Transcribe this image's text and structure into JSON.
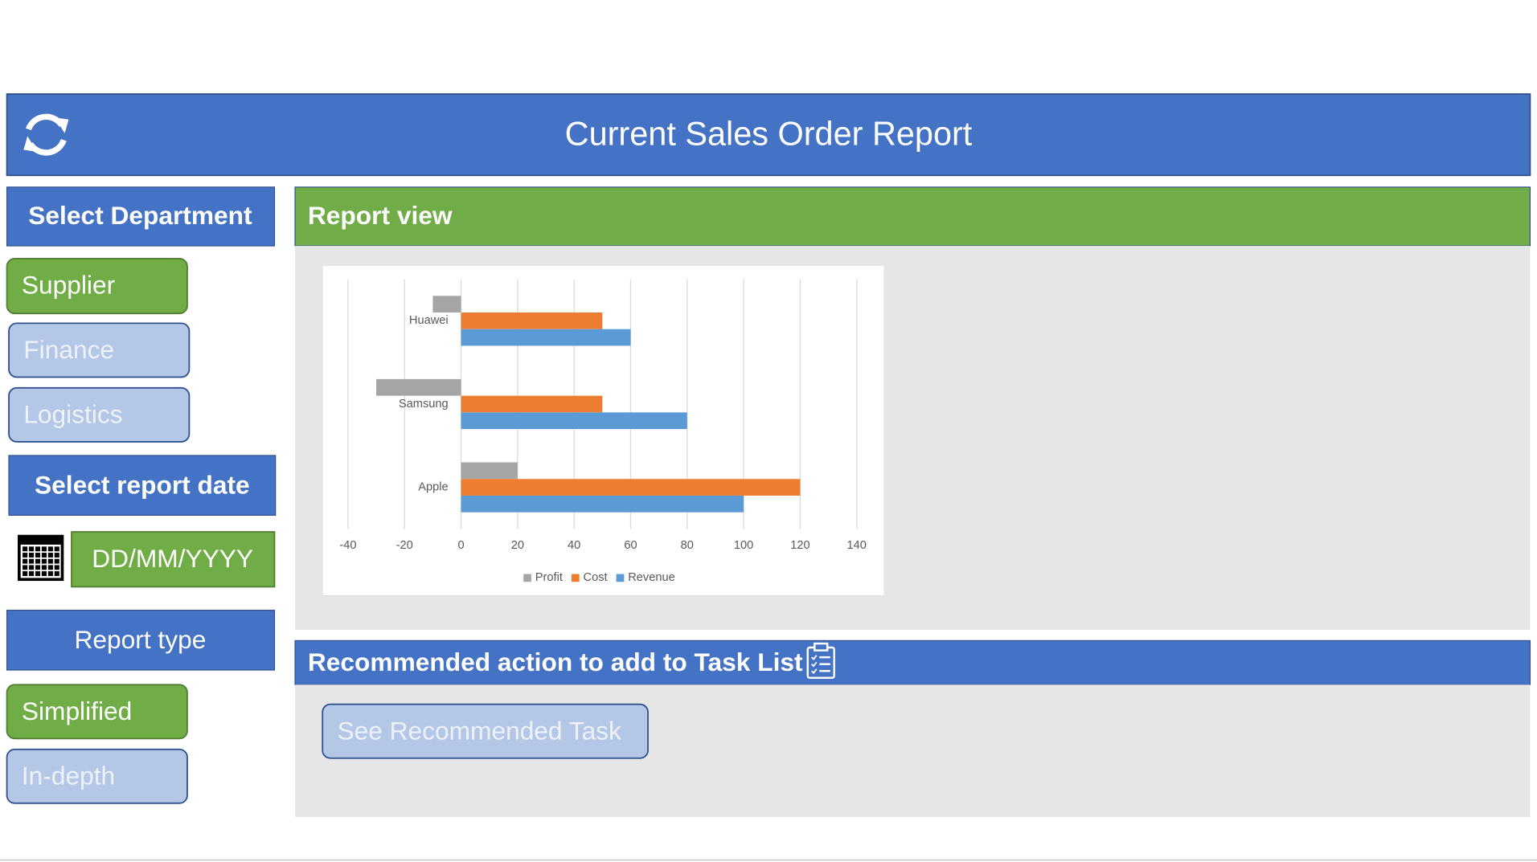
{
  "header": {
    "title": "Current Sales Order Report"
  },
  "sidebar": {
    "department_heading": "Select Department",
    "departments": [
      "Supplier",
      "Finance",
      "Logistics"
    ],
    "date_heading": "Select report date",
    "date_placeholder": "DD/MM/YYYY",
    "report_type_heading": "Report type",
    "report_types": [
      "Simplified",
      "In-depth"
    ]
  },
  "report_view": {
    "heading": "Report view"
  },
  "chart_data": {
    "type": "bar",
    "orientation": "horizontal",
    "categories": [
      "Huawei",
      "Samsung",
      "Apple"
    ],
    "series": [
      {
        "name": "Profit",
        "color": "#a5a5a5",
        "values": [
          -10,
          -30,
          20
        ]
      },
      {
        "name": "Cost",
        "color": "#ed7d31",
        "values": [
          50,
          50,
          120
        ]
      },
      {
        "name": "Revenue",
        "color": "#5b9bd5",
        "values": [
          60,
          80,
          100
        ]
      }
    ],
    "xlim": [
      -40,
      140
    ],
    "xticks": [
      -40,
      -20,
      0,
      20,
      40,
      60,
      80,
      100,
      120,
      140
    ],
    "grid": true,
    "legend": "bottom"
  },
  "recommended": {
    "heading": "Recommended action to add to Task List",
    "button": "See Recommended Task"
  }
}
